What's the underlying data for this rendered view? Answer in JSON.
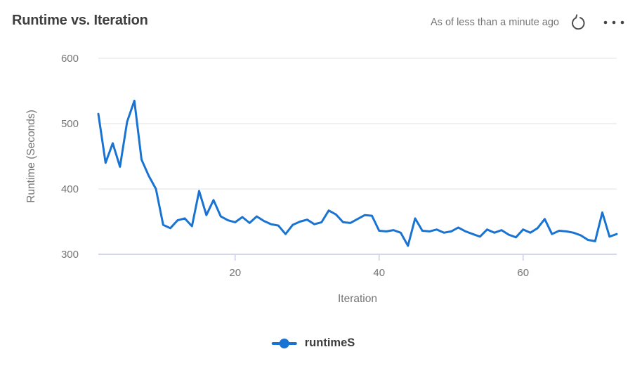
{
  "header": {
    "title": "Runtime vs. Iteration",
    "as_of": "As of less than a minute ago"
  },
  "legend": {
    "label": "runtimeS"
  },
  "colors": {
    "series_blue": "#1973d2",
    "gridline": "#e6e6e6",
    "axis_line": "#c3cce4",
    "title_text": "#3f3f3f",
    "muted_text": "#757575",
    "icon_gray": "#4a4a4a",
    "legend_text": "#3c3c3c"
  },
  "chart_data": {
    "type": "line",
    "title": "Runtime vs. Iteration",
    "xlabel": "Iteration",
    "ylabel": "Runtime (Seconds)",
    "xlim": [
      1,
      73
    ],
    "ylim": [
      300,
      600
    ],
    "xticks": [
      20,
      40,
      60
    ],
    "yticks": [
      300,
      400,
      500,
      600
    ],
    "grid": true,
    "legend_position": "bottom-center",
    "series": [
      {
        "name": "runtimeS",
        "color": "#1973d2",
        "x": [
          1,
          2,
          3,
          4,
          5,
          6,
          7,
          8,
          9,
          10,
          11,
          12,
          13,
          14,
          15,
          16,
          17,
          18,
          19,
          20,
          21,
          22,
          23,
          24,
          25,
          26,
          27,
          28,
          29,
          30,
          31,
          32,
          33,
          34,
          35,
          36,
          37,
          38,
          39,
          40,
          41,
          42,
          43,
          44,
          45,
          46,
          47,
          48,
          49,
          50,
          51,
          52,
          53,
          54,
          55,
          56,
          57,
          58,
          59,
          60,
          61,
          62,
          63,
          64,
          65,
          66,
          67,
          68,
          69,
          70,
          71,
          72,
          73
        ],
        "values": [
          515,
          440,
          470,
          434,
          503,
          535,
          445,
          420,
          400,
          345,
          340,
          352,
          355,
          343,
          397,
          360,
          383,
          358,
          352,
          349,
          357,
          348,
          358,
          351,
          346,
          344,
          331,
          345,
          350,
          353,
          346,
          349,
          367,
          361,
          349,
          348,
          354,
          360,
          359,
          336,
          335,
          337,
          333,
          313,
          355,
          336,
          335,
          338,
          333,
          335,
          341,
          335,
          331,
          327,
          338,
          333,
          337,
          330,
          326,
          338,
          333,
          340,
          354,
          331,
          336,
          335,
          333,
          329,
          322,
          320,
          364,
          327,
          331
        ]
      }
    ]
  }
}
